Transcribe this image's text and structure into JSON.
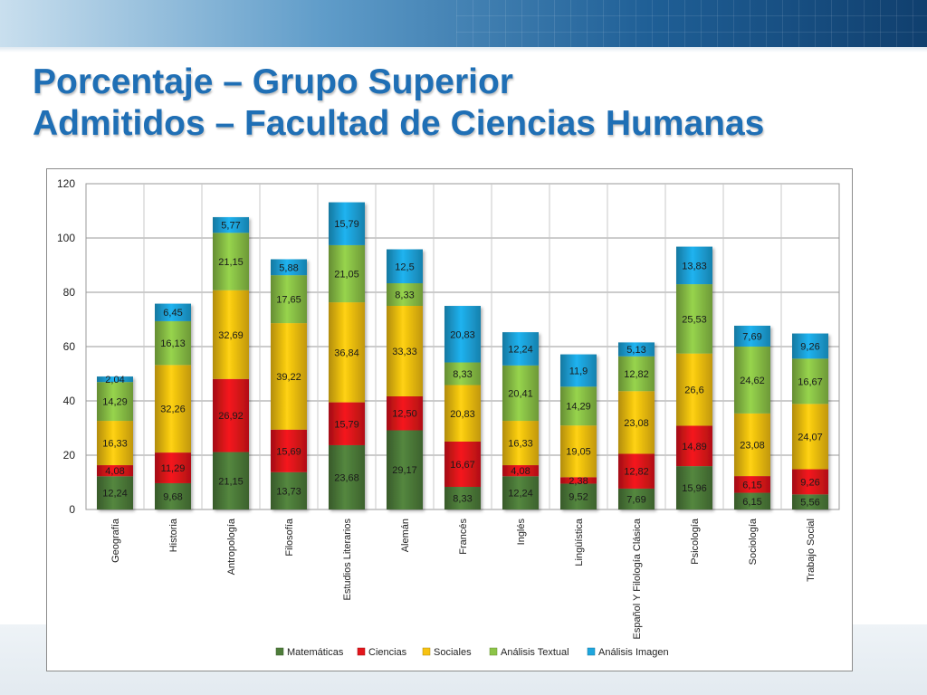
{
  "slide": {
    "title_line1": "Porcentaje – Grupo Superior",
    "title_line2": "Admitidos – Facultad de Ciencias Humanas"
  },
  "colors": {
    "title": "#1f6fb5",
    "Matemáticas": "#4e7d3a",
    "Ciencias": "#e3151b",
    "Sociales": "#f7c211",
    "Análisis Textual": "#8cc447",
    "Análisis Imagen": "#1ea6de"
  },
  "chart_data": {
    "type": "bar",
    "stacked": true,
    "categories": [
      "Geografía",
      "Historia",
      "Antropología",
      "Filosofía",
      "Estudios Literarios",
      "Alemán",
      "Francés",
      "Inglés",
      "Lingüística",
      "Español Y Filología Clásica",
      "Psicología",
      "Sociología",
      "Trabajo Social"
    ],
    "series": [
      {
        "name": "Matemáticas",
        "values": [
          12.24,
          9.68,
          21.15,
          13.73,
          23.68,
          29.17,
          8.33,
          12.24,
          9.52,
          7.69,
          15.96,
          6.15,
          5.56
        ],
        "labels": [
          "12,24",
          "9,68",
          "21,15",
          "13,73",
          "23,68",
          "29,17",
          "8,33",
          "12,24",
          "9,52",
          "7,69",
          "15,96",
          "6,15",
          "5,56"
        ]
      },
      {
        "name": "Ciencias",
        "values": [
          4.08,
          11.29,
          26.92,
          15.69,
          15.79,
          12.5,
          16.67,
          4.08,
          2.38,
          12.82,
          14.89,
          6.15,
          9.26
        ],
        "labels": [
          "4,08",
          "11,29",
          "26,92",
          "15,69",
          "15,79",
          "12,50",
          "16,67",
          "4,08",
          "2,38",
          "12,82",
          "14,89",
          "6,15",
          "9,26"
        ]
      },
      {
        "name": "Sociales",
        "values": [
          16.33,
          32.26,
          32.69,
          39.22,
          36.84,
          33.33,
          20.83,
          16.33,
          19.05,
          23.08,
          26.6,
          23.08,
          24.07
        ],
        "labels": [
          "16,33",
          "32,26",
          "32,69",
          "39,22",
          "36,84",
          "33,33",
          "20,83",
          "16,33",
          "19,05",
          "23,08",
          "26,6",
          "23,08",
          "24,07"
        ]
      },
      {
        "name": "Análisis Textual",
        "values": [
          14.29,
          16.13,
          21.15,
          17.65,
          21.05,
          8.33,
          8.33,
          20.41,
          14.29,
          12.82,
          25.53,
          24.62,
          16.67
        ],
        "labels": [
          "14,29",
          "16,13",
          "21,15",
          "17,65",
          "21,05",
          "8,33",
          "8,33",
          "20,41",
          "14,29",
          "12,82",
          "25,53",
          "24,62",
          "16,67"
        ]
      },
      {
        "name": "Análisis Imagen",
        "values": [
          2.04,
          6.45,
          5.77,
          5.88,
          15.79,
          12.5,
          20.83,
          12.24,
          11.9,
          5.13,
          13.83,
          7.69,
          9.26
        ],
        "labels": [
          "2,04",
          "6,45",
          "5,77",
          "5,88",
          "15,79",
          "12,5",
          "20,83",
          "12,24",
          "11,9",
          "5,13",
          "13,83",
          "7,69",
          "9,26"
        ]
      }
    ],
    "ylim": [
      0,
      120
    ],
    "yticks": [
      "0",
      "20",
      "40",
      "60",
      "80",
      "100",
      "120"
    ],
    "grid": true,
    "legend": "bottom"
  }
}
